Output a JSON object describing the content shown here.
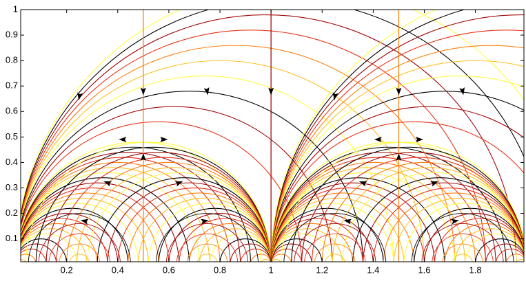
{
  "chart_data": {
    "type": "streamplot",
    "xlim": [
      0.02,
      1.99
    ],
    "ylim": [
      0.01,
      1
    ],
    "xticks": [
      0.2,
      0.4,
      0.6,
      0.8,
      1,
      1.2,
      1.4,
      1.6,
      1.8
    ],
    "yticks": [
      0.1,
      0.2,
      0.3,
      0.4,
      0.5,
      0.6,
      0.7,
      0.8,
      0.9,
      1
    ],
    "colors": [
      "#ffff40",
      "#ffc020",
      "#ff8010",
      "#e83018",
      "#a00808",
      "#000000"
    ]
  }
}
